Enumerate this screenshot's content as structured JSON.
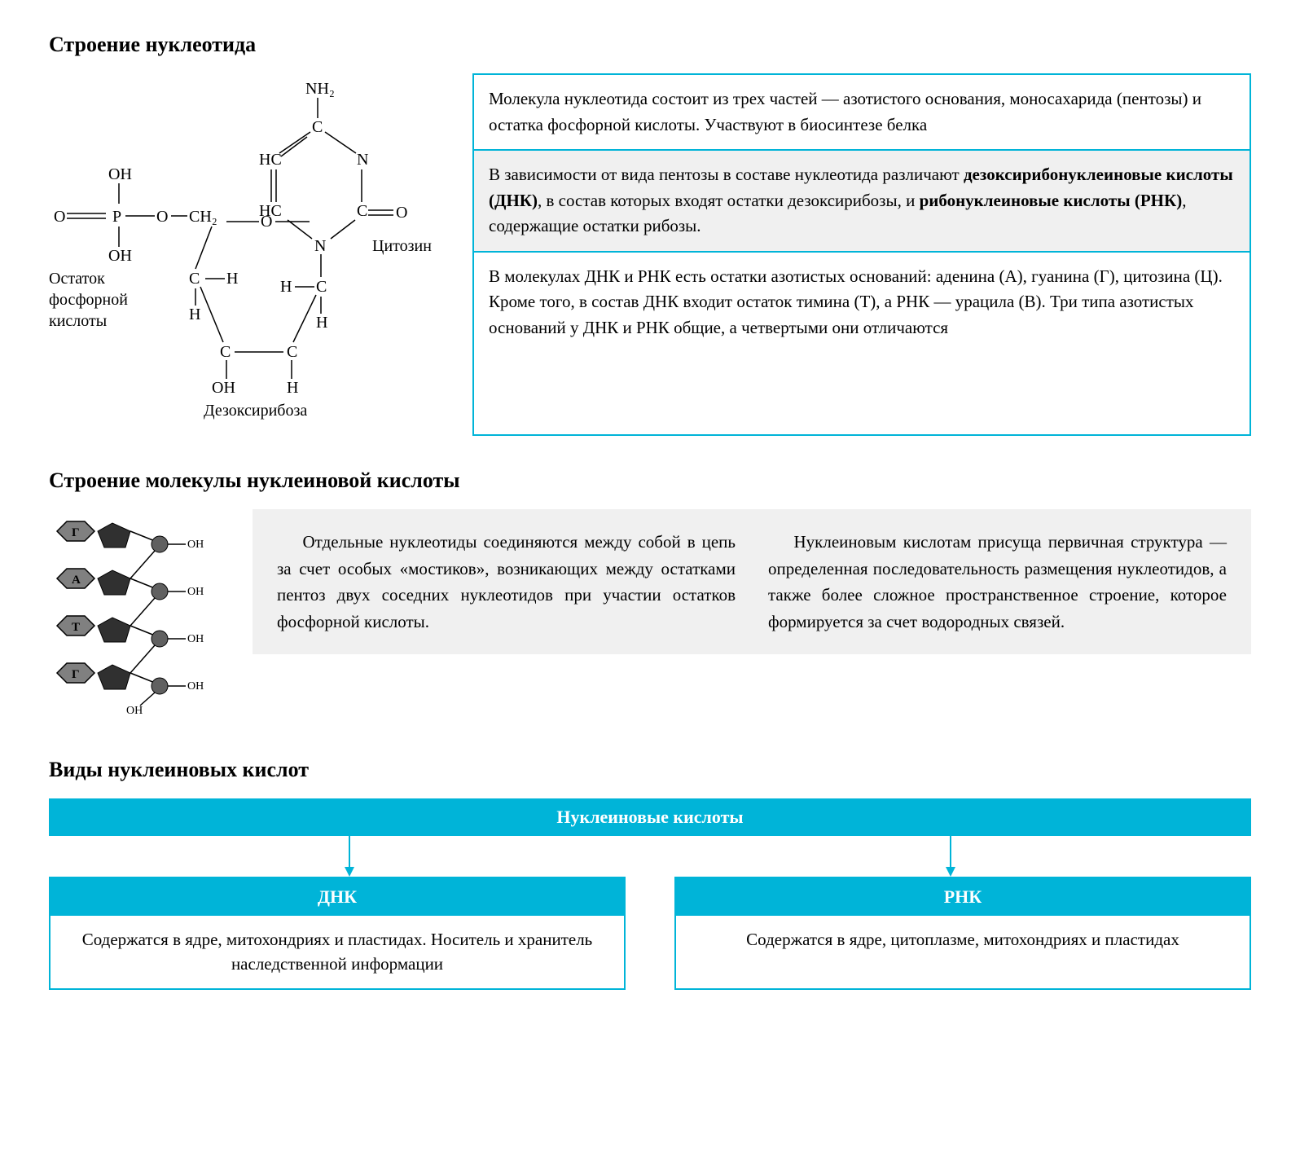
{
  "section1": {
    "heading": "Строение нуклеотида",
    "diagram": {
      "labels": {
        "nh2": "NH₂",
        "cytosine": "Цитозин",
        "phosphate_residue": "Остаток фосфорной кислоты",
        "deoxyribose": "Дезоксирибоза"
      },
      "atoms": [
        "O",
        "P",
        "OH",
        "O",
        "CH₂",
        "O",
        "C",
        "N",
        "HC",
        "HC",
        "N",
        "C",
        "O",
        "C",
        "H",
        "H",
        "C",
        "C",
        "H"
      ],
      "colors": {
        "line": "#000000",
        "text": "#000000"
      }
    },
    "rows": [
      {
        "html": "Молекула нуклеотида состоит из трех частей — азотистого основания, моносахарида (пентозы) и остатка фосфорной кислоты. Участвуют в биосинтезе белка",
        "shaded": false
      },
      {
        "html": "В зависимости от вида пентозы в составе нуклеотида различают <b>дезоксирибонуклеиновые кислоты (ДНК)</b>, в состав которых входят остатки дезоксирибозы, и <b>рибонуклеиновые кислоты (РНК)</b>, содержащие остатки рибозы.",
        "shaded": true
      },
      {
        "html": "В молекулах ДНК и РНК есть остатки азотистых оснований: аденина (А), гуанина (Г), цитозина (Ц). Кроме того, в состав ДНК входит остаток тимина (Т), а РНК — урацила (В). Три типа азотистых оснований у ДНК и РНК общие, а четвертыми они отличаются",
        "shaded": false
      }
    ]
  },
  "section2": {
    "heading": "Строение молекулы нуклеиновой кислоты",
    "chain_bases": [
      "Г",
      "А",
      "Т",
      "Г"
    ],
    "col1": "Отдельные нуклеотиды соединяются между собой в цепь за счет особых «мостиков», возникающих между остатками пентоз двух соседних нуклеотидов при участии остатков фосфорной кислоты.",
    "col2": "Нуклеиновым кислотам присуща первичная структура — определенная последовательность размещения нуклеотидов, а также более сложное пространственное строение, которое формируется за счет водородных связей."
  },
  "section3": {
    "heading": "Виды нуклеиновых кислот",
    "root": "Нуклеиновые кислоты",
    "branches": [
      {
        "title": "ДНК",
        "body": "Содержатся в ядре, митохондриях и пластидах. Носитель и хранитель наследственной информации"
      },
      {
        "title": "РНК",
        "body": "Содержатся в ядре, цитоплазме, митохондриях и пластидах"
      }
    ],
    "colors": {
      "accent": "#00b4d8",
      "accent_text": "#ffffff",
      "shaded_bg": "#f0f0f0"
    }
  }
}
